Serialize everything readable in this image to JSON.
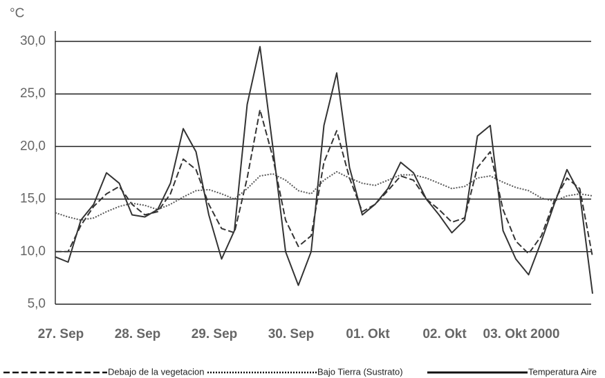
{
  "chart_data": {
    "type": "line",
    "y_unit": "°C",
    "categories": [
      "27. Sep",
      null,
      null,
      null,
      null,
      null,
      "28. Sep",
      null,
      null,
      null,
      null,
      null,
      "29. Sep",
      null,
      null,
      null,
      null,
      null,
      "30. Sep",
      null,
      null,
      null,
      null,
      null,
      "01. Okt",
      null,
      null,
      null,
      null,
      null,
      "02. Okt",
      null,
      null,
      null,
      null,
      null,
      "03. Okt 2000",
      null,
      null,
      null,
      null,
      null,
      null
    ],
    "series": [
      {
        "name": "Debajo de la vegetacion",
        "color": "#333333",
        "dash": "dashed",
        "values": [
          10,
          10,
          12.5,
          14.3,
          15.5,
          16.2,
          14.5,
          13.5,
          13.8,
          15.5,
          18.8,
          17.8,
          14.5,
          12.2,
          11.8,
          17,
          23.5,
          19,
          13,
          10.5,
          11.5,
          18.5,
          21.5,
          17,
          13.8,
          14.5,
          15.8,
          17.2,
          16.8,
          15,
          14,
          12.8,
          13.2,
          18,
          19.5,
          14,
          11,
          9.8,
          11.5,
          14.8,
          17,
          16,
          9.5
        ]
      },
      {
        "name": "Bajo Tierra (Sustrato)",
        "color": "#555555",
        "dash": "dotted",
        "values": [
          13.7,
          13.3,
          13,
          13.2,
          13.8,
          14.3,
          14.6,
          14.4,
          14,
          14.5,
          15.2,
          15.8,
          15.9,
          15.5,
          15,
          16,
          17.2,
          17.4,
          16.8,
          15.8,
          15.5,
          16.8,
          17.6,
          17,
          16.5,
          16.3,
          16.8,
          17.3,
          17.3,
          17,
          16.5,
          16,
          16.2,
          17,
          17.2,
          16.6,
          16.1,
          15.8,
          15.1,
          14.8,
          15.3,
          15.5,
          15.3
        ]
      },
      {
        "name": "Temperatura Aire",
        "color": "#333333",
        "dash": "solid",
        "values": [
          9.5,
          9,
          13,
          14.5,
          17.5,
          16.5,
          13.5,
          13.3,
          14,
          16.5,
          21.7,
          19.5,
          13.5,
          9.3,
          12,
          24,
          29.5,
          20,
          10,
          6.8,
          10,
          22,
          27,
          18,
          13.5,
          14.5,
          16,
          18.5,
          17.5,
          15,
          13.5,
          11.8,
          13,
          21,
          22,
          12,
          9.3,
          7.8,
          11,
          14.5,
          17.8,
          15.5,
          6
        ]
      }
    ],
    "ylim": [
      5,
      30
    ],
    "yticks": [
      {
        "value": 5,
        "label": "5,0"
      },
      {
        "value": 10,
        "label": "10,0"
      },
      {
        "value": 15,
        "label": "15,0"
      },
      {
        "value": 20,
        "label": "20,0"
      },
      {
        "value": 25,
        "label": "25,0"
      },
      {
        "value": 30,
        "label": "30,0"
      }
    ],
    "grid": true
  }
}
